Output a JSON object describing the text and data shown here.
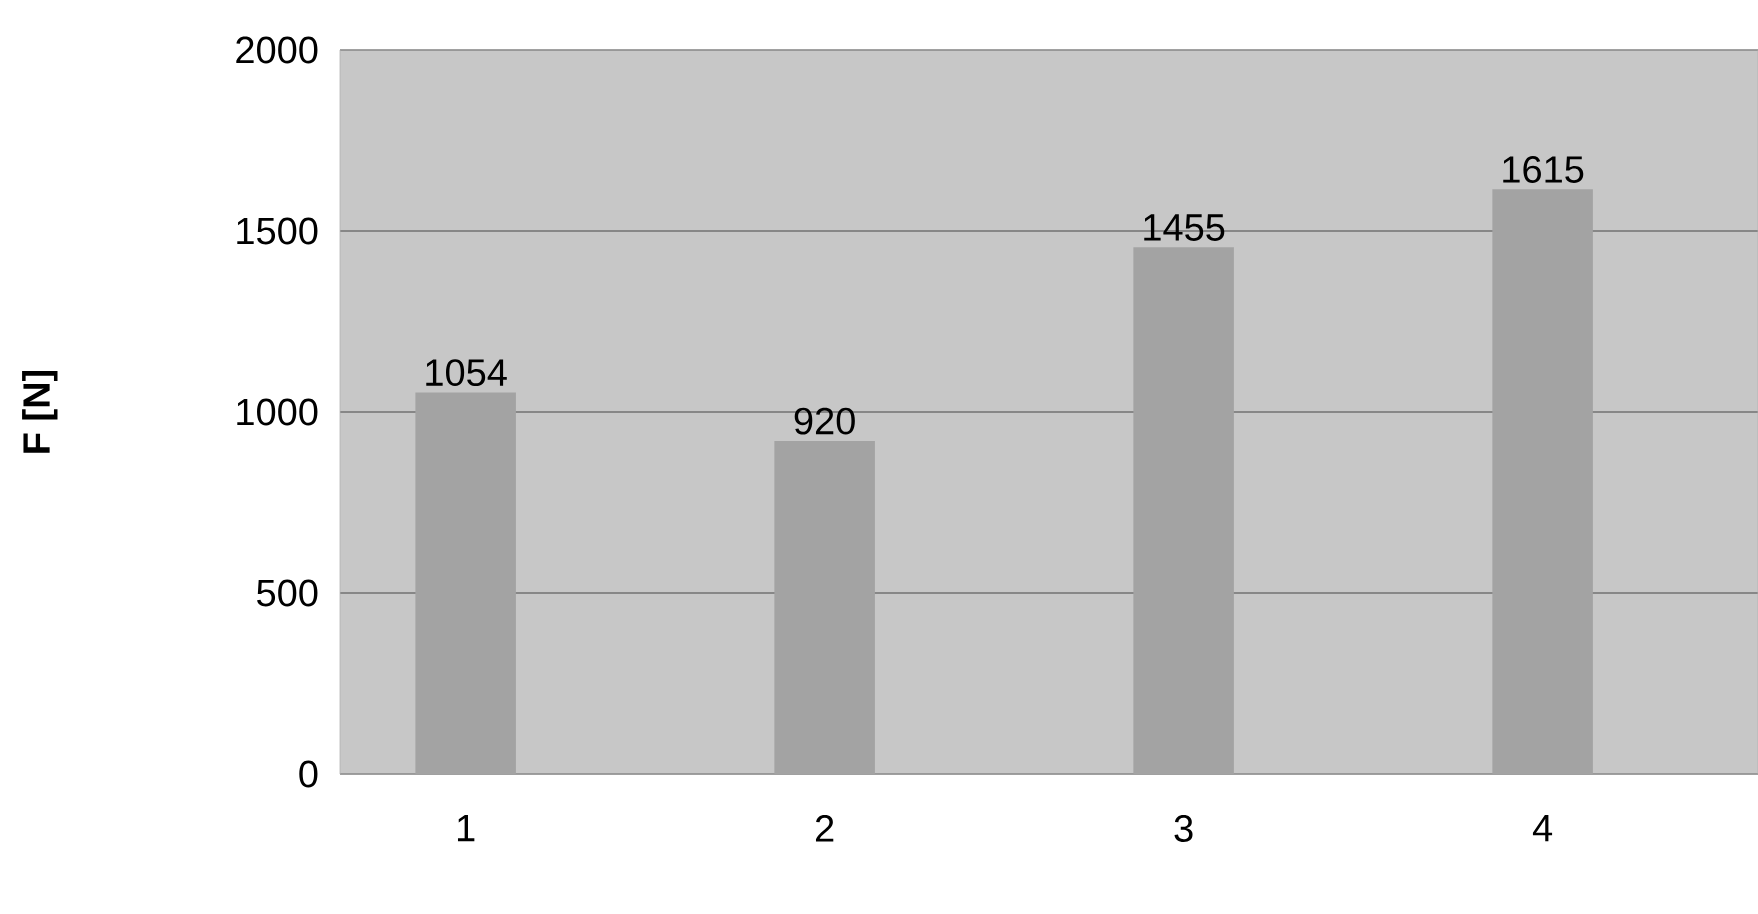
{
  "chart_data": {
    "type": "bar",
    "ylabel": "F [N]",
    "categories": [
      "1",
      "2",
      "3",
      "4"
    ],
    "values": [
      1054,
      920,
      1455,
      1615
    ],
    "color": "#a3a3a3",
    "ylim": [
      0,
      2000
    ],
    "yticks": [
      0,
      500,
      1000,
      1500,
      2000
    ],
    "grid": "y",
    "data_labels": true
  }
}
